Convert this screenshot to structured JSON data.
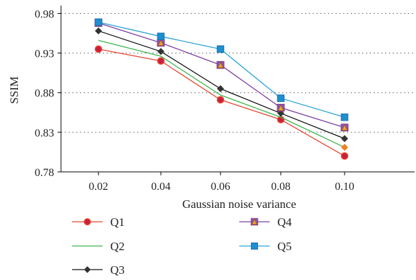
{
  "chart_data": {
    "type": "line",
    "xlabel": "Gaussian noise variance",
    "ylabel": "SSIM",
    "x": [
      "0.02",
      "0.04",
      "0.06",
      "0.08",
      "0.10"
    ],
    "y_ticks": [
      "0.78",
      "0.83",
      "0.88",
      "0.93",
      "0.98"
    ],
    "ylim": [
      0.78,
      0.99
    ],
    "grid": "horizontal-dotted",
    "legend_position": "bottom",
    "series": [
      {
        "name": "Q1",
        "values": [
          0.935,
          0.92,
          0.871,
          0.846,
          0.8
        ],
        "color": "#e8432f",
        "marker": "circle",
        "marker_fill": "#c8203c"
      },
      {
        "name": "Q2",
        "values": [
          0.946,
          0.926,
          0.877,
          0.849,
          0.811
        ],
        "color": "#3cb44b",
        "marker": "diamond",
        "marker_fill": "#f07f20"
      },
      {
        "name": "Q3",
        "values": [
          0.958,
          0.932,
          0.885,
          0.854,
          0.822
        ],
        "color": "#111111",
        "marker": "diamond",
        "marker_fill": "#333333"
      },
      {
        "name": "Q4",
        "values": [
          0.968,
          0.943,
          0.915,
          0.861,
          0.836
        ],
        "color": "#7b3fa0",
        "marker": "triangle-square",
        "marker_fill": "#e0a830"
      },
      {
        "name": "Q5",
        "values": [
          0.969,
          0.951,
          0.935,
          0.873,
          0.849
        ],
        "color": "#29a3d6",
        "marker": "square",
        "marker_fill": "#1e8fd0"
      }
    ]
  }
}
